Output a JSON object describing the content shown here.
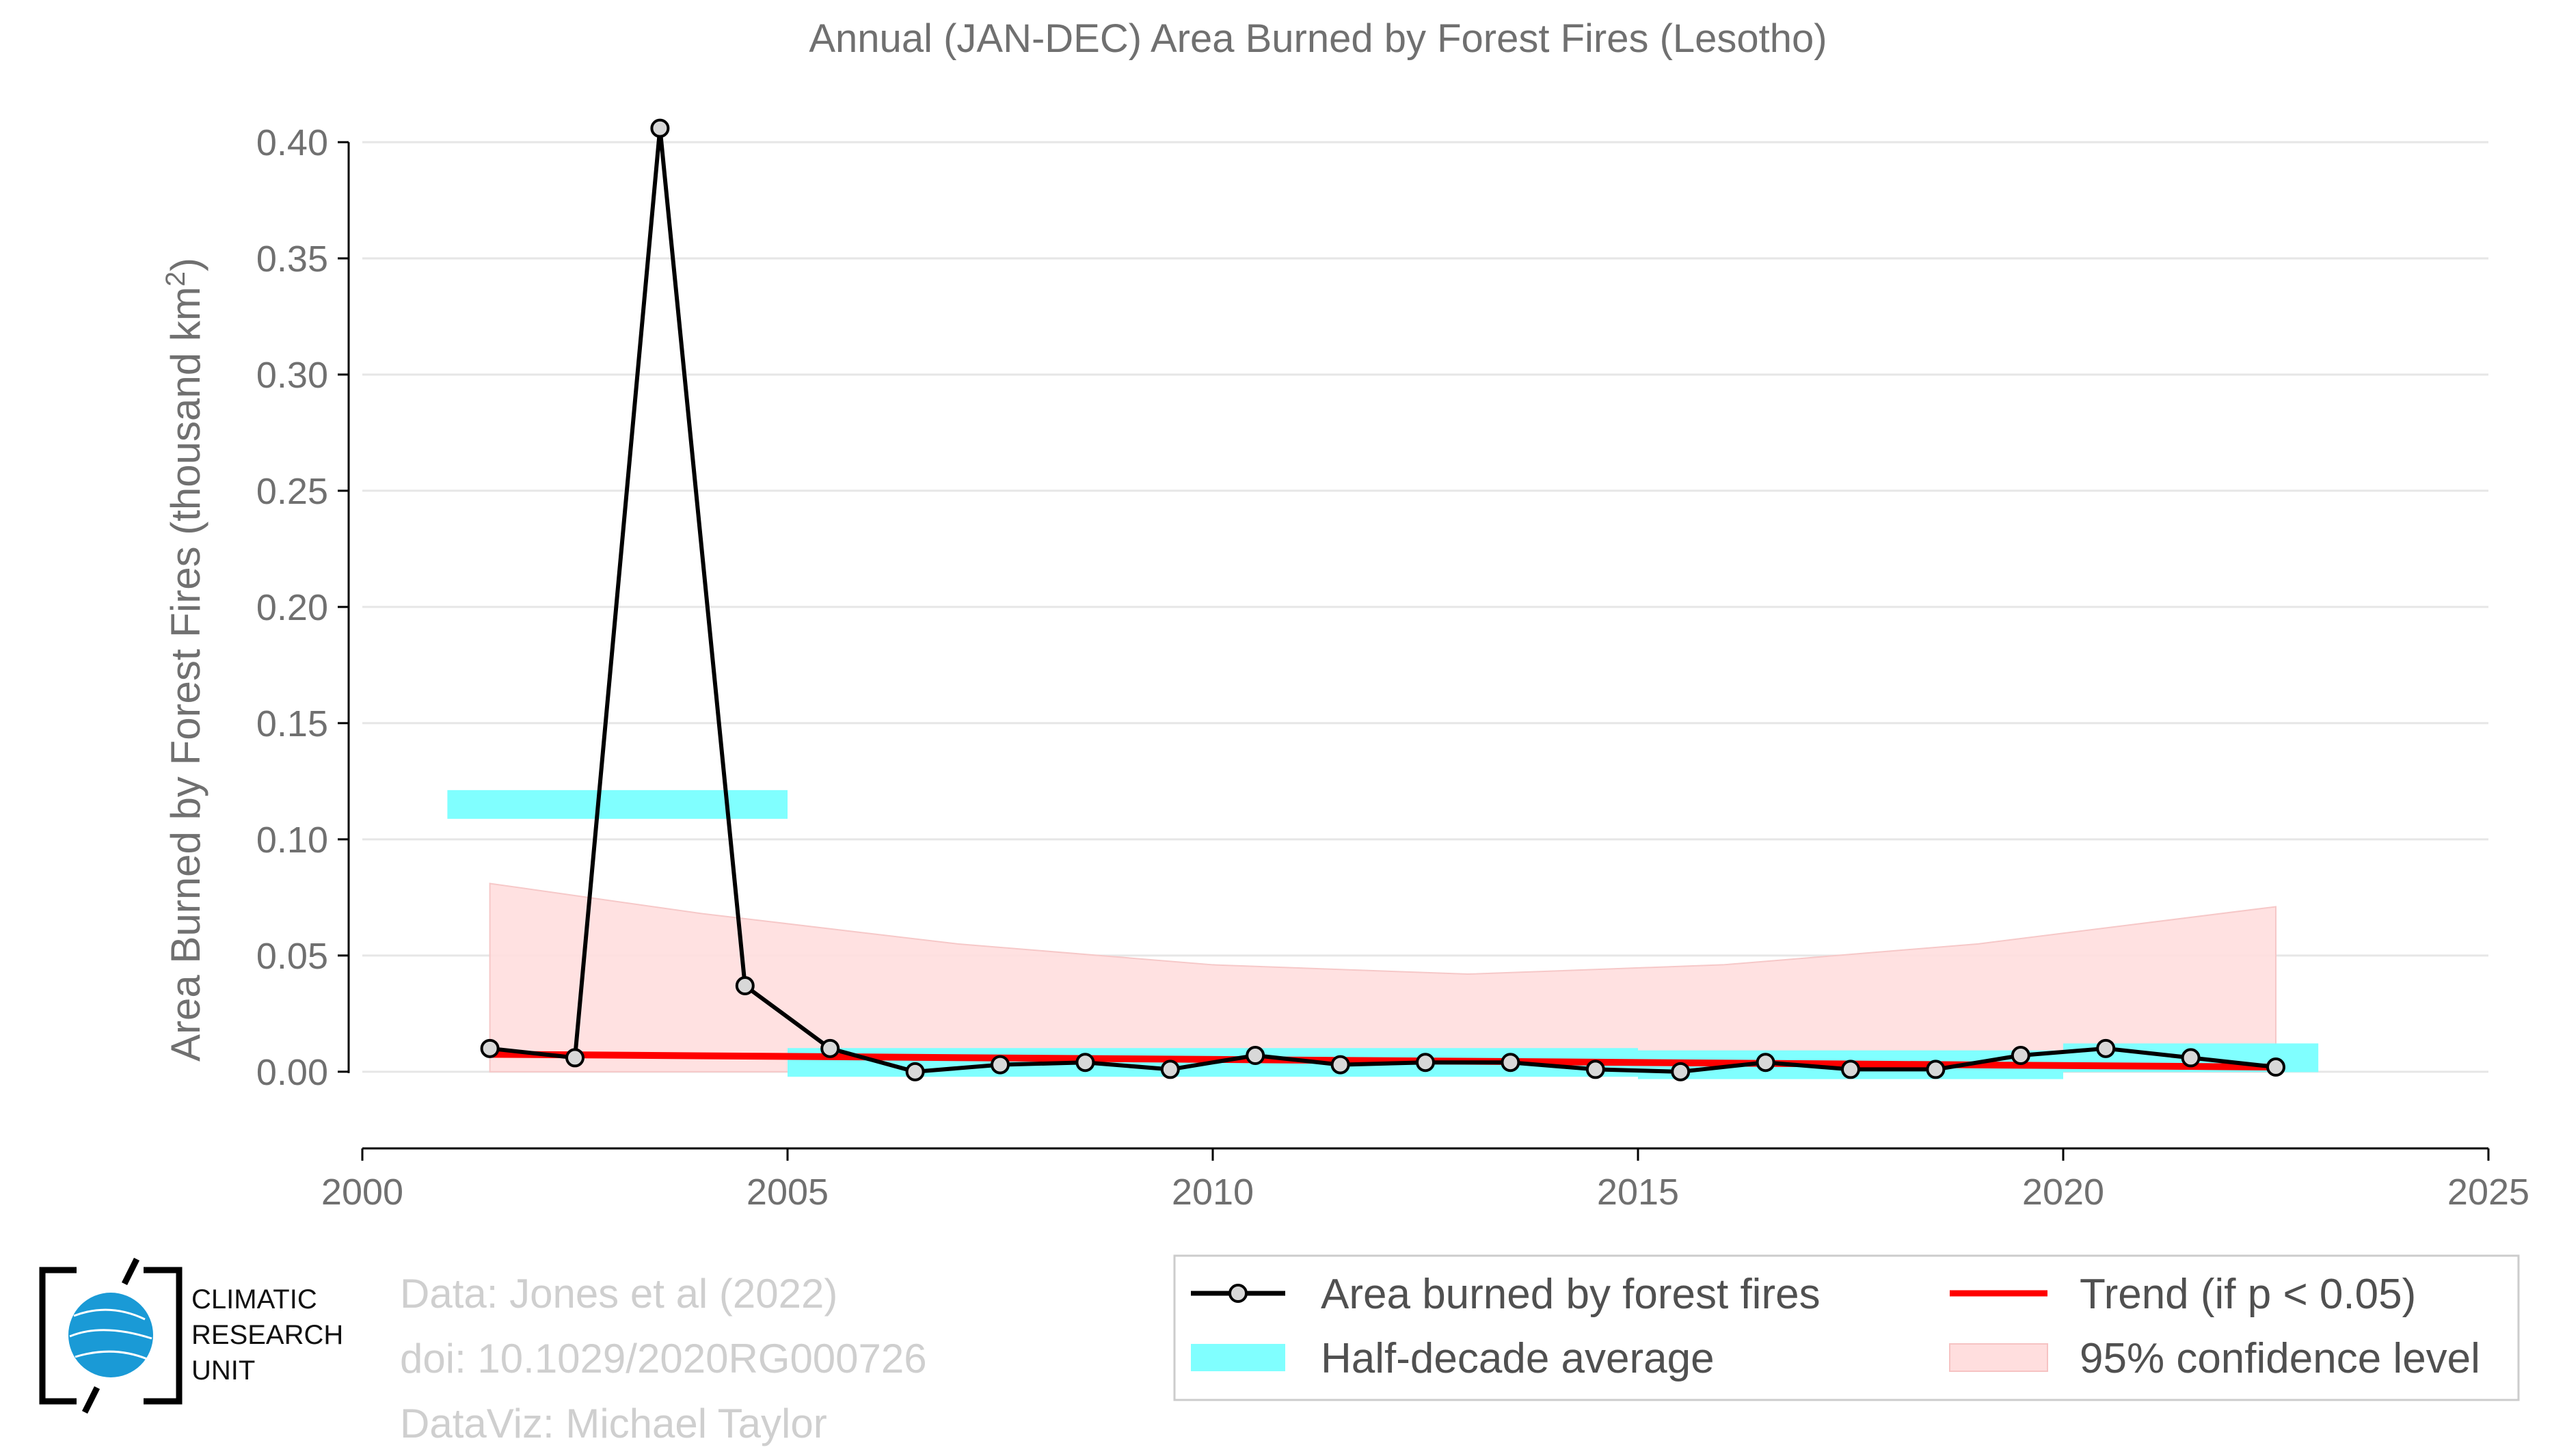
{
  "chart_data": {
    "type": "line",
    "title": "Annual (JAN-DEC) Area Burned by Forest Fires (Lesotho)",
    "xlabel": "",
    "ylabel": "Area Burned by Forest Fires (thousand km²)",
    "ylabel_parts": {
      "main": "Area Burned by Forest Fires (thousand km",
      "sup": "2",
      "end": ")"
    },
    "xlim": [
      2000,
      2025
    ],
    "ylim": [
      -0.033,
      0.42
    ],
    "xticks": [
      2000,
      2005,
      2010,
      2015,
      2020,
      2025
    ],
    "yticks": [
      0.0,
      0.05,
      0.1,
      0.15,
      0.2,
      0.25,
      0.3,
      0.35,
      0.4
    ],
    "ytick_labels": [
      "0.00",
      "0.05",
      "0.10",
      "0.15",
      "0.20",
      "0.25",
      "0.30",
      "0.35",
      "0.40"
    ],
    "grid": "horizontal",
    "series": [
      {
        "name": "Area burned by forest fires",
        "type": "line-marker",
        "color": "#000000",
        "x": [
          2001.5,
          2002.5,
          2003.5,
          2004.5,
          2005.5,
          2006.5,
          2007.5,
          2008.5,
          2009.5,
          2010.5,
          2011.5,
          2012.5,
          2013.5,
          2014.5,
          2015.5,
          2016.5,
          2017.5,
          2018.5,
          2019.5,
          2020.5,
          2021.5,
          2022.5
        ],
        "y": [
          0.01,
          0.006,
          0.406,
          0.037,
          0.01,
          0.0,
          0.003,
          0.004,
          0.001,
          0.007,
          0.003,
          0.004,
          0.004,
          0.001,
          0.0,
          0.004,
          0.001,
          0.001,
          0.007,
          0.01,
          0.006,
          0.002
        ]
      },
      {
        "name": "Half-decade average",
        "type": "step-band",
        "color": "#80ffff",
        "segments": [
          {
            "x0": 2001.0,
            "x1": 2005.0,
            "y": 0.115
          },
          {
            "x0": 2005.0,
            "x1": 2015.0,
            "y": 0.004
          },
          {
            "x0": 2015.0,
            "x1": 2020.0,
            "y": 0.003
          },
          {
            "x0": 2020.0,
            "x1": 2023.0,
            "y": 0.006
          }
        ]
      },
      {
        "name": "Trend (if p < 0.05)",
        "type": "line",
        "color": "#ff0000",
        "x": [
          2001.5,
          2022.5
        ],
        "y": [
          0.0075,
          0.002
        ]
      },
      {
        "name": "95% confidence level",
        "type": "band",
        "color": "#ffdede",
        "x": [
          2001.5,
          2004.0,
          2007.0,
          2010.0,
          2013.0,
          2016.0,
          2019.0,
          2022.5
        ],
        "upper": [
          0.081,
          0.068,
          0.055,
          0.046,
          0.042,
          0.046,
          0.055,
          0.071
        ],
        "lower": [
          0.0,
          0.0,
          0.0,
          0.0,
          0.0,
          0.0,
          0.0,
          0.0
        ]
      }
    ],
    "legend": {
      "placement": "bottom-right",
      "entries": [
        "Area burned by forest fires",
        "Trend (if p < 0.05)",
        "Half-decade average",
        "95% confidence level"
      ]
    }
  },
  "credits": {
    "line1": "Data: Jones et al (2022)",
    "line2": "doi: 10.1029/2020RG000726",
    "line3": "DataViz: Michael Taylor"
  },
  "logo": {
    "text_lines": [
      "CLIMATIC",
      "RESEARCH",
      "UNIT"
    ],
    "colors": {
      "globe": "#1a9ad6",
      "frame": "#000000"
    }
  }
}
